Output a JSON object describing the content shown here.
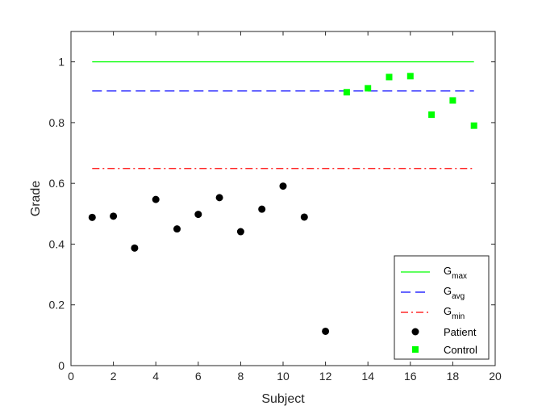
{
  "chart_data": {
    "type": "scatter",
    "xlabel": "Subject",
    "ylabel": "Grade",
    "xlim": [
      0,
      20
    ],
    "ylim": [
      0,
      1.1
    ],
    "xticks": [
      0,
      2,
      4,
      6,
      8,
      10,
      12,
      14,
      16,
      18,
      20
    ],
    "yticks": [
      0,
      0.2,
      0.4,
      0.6,
      0.8,
      1
    ],
    "ytick_labels": [
      "0",
      "0.2",
      "0.4",
      "0.6",
      "0.8",
      "1"
    ],
    "grid": false,
    "legend_position": "bottom-right",
    "reference_lines": [
      {
        "name_base": "G",
        "name_sub": "max",
        "y": 1.0,
        "x_range": [
          1,
          19
        ],
        "color": "#00ff00",
        "style": "solid"
      },
      {
        "name_base": "G",
        "name_sub": "avg",
        "y": 0.904,
        "x_range": [
          1,
          19
        ],
        "color": "#0000ff",
        "style": "dashed"
      },
      {
        "name_base": "G",
        "name_sub": "min",
        "y": 0.649,
        "x_range": [
          1,
          19
        ],
        "color": "#ff0000",
        "style": "dashdot"
      }
    ],
    "series": [
      {
        "name": "Patient",
        "marker": "circle",
        "color": "#000000",
        "x": [
          1,
          2,
          3,
          4,
          5,
          6,
          7,
          8,
          9,
          10,
          11,
          12
        ],
        "y": [
          0.488,
          0.492,
          0.387,
          0.547,
          0.45,
          0.498,
          0.553,
          0.441,
          0.515,
          0.591,
          0.489,
          0.113
        ]
      },
      {
        "name": "Control",
        "marker": "square",
        "color": "#00ff00",
        "x": [
          13,
          14,
          15,
          16,
          17,
          18,
          19
        ],
        "y": [
          0.9,
          0.913,
          0.95,
          0.953,
          0.826,
          0.873,
          0.79
        ]
      }
    ]
  }
}
